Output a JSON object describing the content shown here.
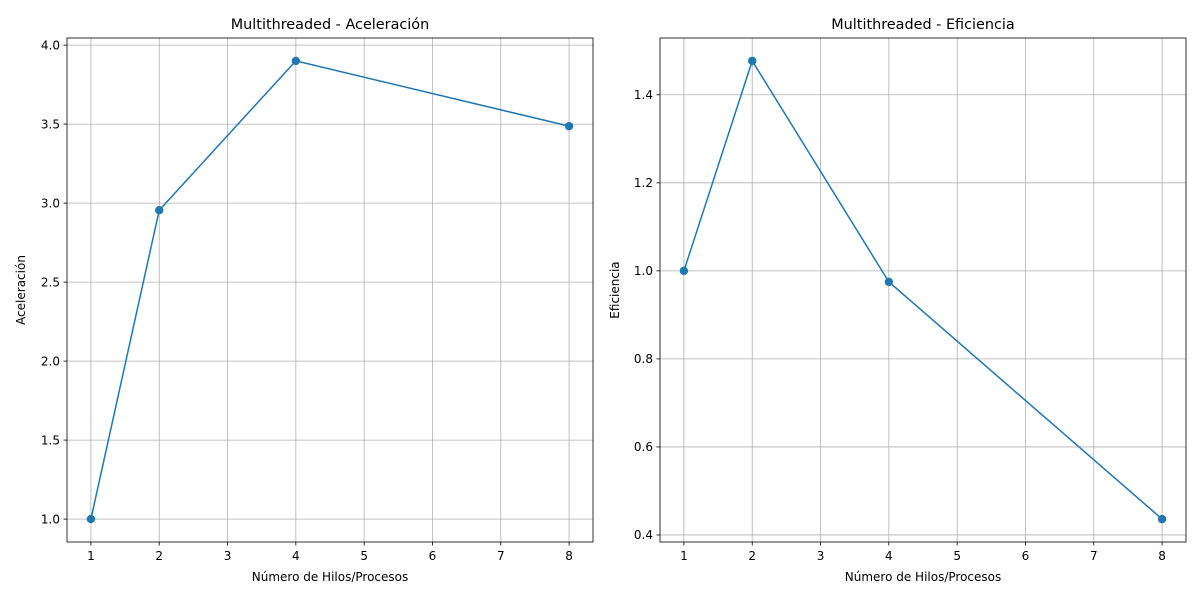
{
  "chart_data": [
    {
      "type": "line",
      "title": "Multithreaded - Aceleración",
      "xlabel": "Número de Hilos/Procesos",
      "ylabel": "Aceleración",
      "x": [
        1,
        2,
        4,
        8
      ],
      "series": [
        {
          "values": [
            1.0,
            2.955,
            3.9,
            3.487
          ]
        }
      ],
      "xlim": [
        0.65,
        8.35
      ],
      "ylim": [
        0.855,
        4.045
      ],
      "xticks": [
        1,
        2,
        3,
        4,
        5,
        6,
        7,
        8
      ],
      "xtick_labels": [
        "1",
        "2",
        "3",
        "4",
        "5",
        "6",
        "7",
        "8"
      ],
      "yticks": [
        1.0,
        1.5,
        2.0,
        2.5,
        3.0,
        3.5,
        4.0
      ],
      "ytick_labels": [
        "1.0",
        "1.5",
        "2.0",
        "2.5",
        "3.0",
        "3.5",
        "4.0"
      ],
      "grid": true,
      "color": "#1f77b4",
      "marker": "circle"
    },
    {
      "type": "line",
      "title": "Multithreaded - Eficiencia",
      "xlabel": "Número de Hilos/Procesos",
      "ylabel": "Eficiencia",
      "x": [
        1,
        2,
        4,
        8
      ],
      "series": [
        {
          "values": [
            1.0,
            1.477,
            0.975,
            0.436
          ]
        }
      ],
      "xlim": [
        0.65,
        8.35
      ],
      "ylim": [
        0.384,
        1.529
      ],
      "xticks": [
        1,
        2,
        3,
        4,
        5,
        6,
        7,
        8
      ],
      "xtick_labels": [
        "1",
        "2",
        "3",
        "4",
        "5",
        "6",
        "7",
        "8"
      ],
      "yticks": [
        0.4,
        0.6,
        0.8,
        1.0,
        1.2,
        1.4
      ],
      "ytick_labels": [
        "0.4",
        "0.6",
        "0.8",
        "1.0",
        "1.2",
        "1.4"
      ],
      "grid": true,
      "color": "#1f77b4",
      "marker": "circle"
    }
  ]
}
